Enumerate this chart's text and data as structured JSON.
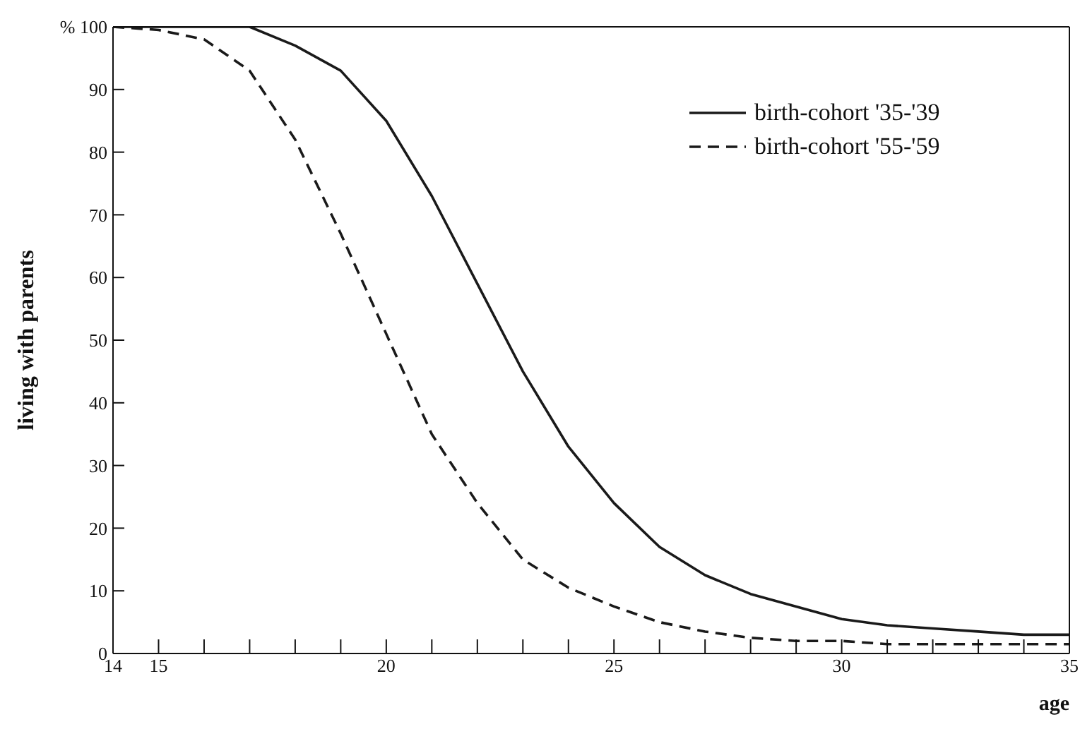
{
  "chart_data": {
    "type": "line",
    "xlabel": "age",
    "ylabel": "living with parents",
    "x": [
      14,
      15,
      16,
      17,
      18,
      19,
      20,
      21,
      22,
      23,
      24,
      25,
      26,
      27,
      28,
      29,
      30,
      31,
      32,
      33,
      34,
      35
    ],
    "series": [
      {
        "name": "birth-cohort '35-'39",
        "color": "#1a1a1a",
        "line_style": "solid",
        "values": [
          100,
          100,
          100,
          100,
          97,
          93,
          85,
          73,
          59,
          45,
          33,
          24,
          17,
          12.5,
          9.5,
          7.5,
          5.5,
          4.5,
          4,
          3.5,
          3,
          3
        ]
      },
      {
        "name": "birth-cohort '55-'59",
        "color": "#1a1a1a",
        "line_style": "dashed",
        "values": [
          100,
          99.5,
          98,
          93,
          82,
          67,
          51,
          35,
          24,
          15,
          10.5,
          7.5,
          5,
          3.5,
          2.5,
          2,
          2,
          1.5,
          1.5,
          1.5,
          1.5,
          1.5
        ]
      }
    ],
    "xlim": [
      14,
      35
    ],
    "xticks": [
      14,
      15,
      {
        "value": 16,
        "label": null
      },
      {
        "value": 17,
        "label": null
      },
      {
        "value": 18,
        "label": null
      },
      {
        "value": 19,
        "label": null
      },
      20,
      {
        "value": 21,
        "label": null
      },
      {
        "value": 22,
        "label": null
      },
      {
        "value": 23,
        "label": null
      },
      {
        "value": 24,
        "label": null
      },
      25,
      {
        "value": 26,
        "label": null
      },
      {
        "value": 27,
        "label": null
      },
      {
        "value": 28,
        "label": null
      },
      {
        "value": 29,
        "label": null
      },
      30,
      {
        "value": 31,
        "label": null
      },
      {
        "value": 32,
        "label": null
      },
      {
        "value": 33,
        "label": null
      },
      {
        "value": 34,
        "label": null
      },
      35
    ],
    "ylim": [
      0,
      100
    ],
    "yticks": [
      0,
      10,
      20,
      30,
      40,
      50,
      60,
      70,
      80,
      90,
      {
        "value": 100,
        "label": "% 100"
      }
    ],
    "legend": "top right",
    "marker": "none"
  }
}
